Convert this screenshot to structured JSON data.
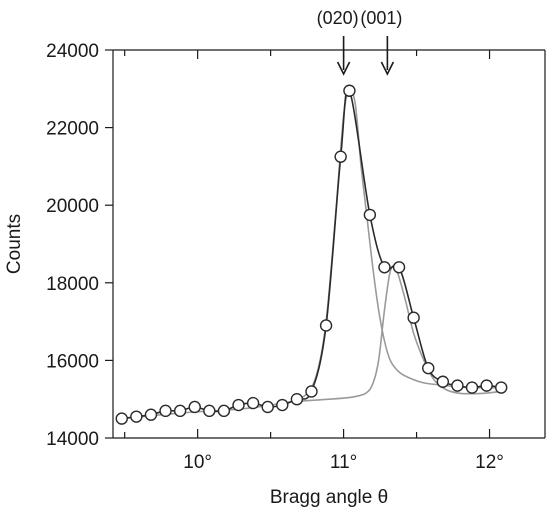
{
  "chart_data": {
    "type": "scatter",
    "title": "",
    "xlabel": "Bragg angle θ",
    "ylabel": "Counts",
    "xlim": [
      9.42,
      12.38
    ],
    "ylim": [
      14000,
      24000
    ],
    "x_ticks": [
      10,
      11,
      12
    ],
    "x_tick_labels": [
      "10°",
      "11°",
      "12°"
    ],
    "y_ticks": [
      14000,
      16000,
      18000,
      20000,
      22000,
      24000
    ],
    "y_tick_labels": [
      "14000",
      "16000",
      "18000",
      "20000",
      "22000",
      "24000"
    ],
    "grid": false,
    "legend": "none",
    "colors": {
      "data_line": "#2a2a2a",
      "fit_line": "#9a9a9a",
      "axes": "#1a1a1a",
      "markers_fill": "#ffffff"
    },
    "series": [
      {
        "kind": "measured",
        "marker": "open-circle",
        "x": [
          9.48,
          9.58,
          9.68,
          9.78,
          9.88,
          9.98,
          10.08,
          10.18,
          10.28,
          10.38,
          10.48,
          10.58,
          10.68,
          10.78,
          10.88,
          10.98,
          11.04,
          11.18,
          11.28,
          11.38,
          11.48,
          11.58,
          11.68,
          11.78,
          11.88,
          11.98,
          12.08
        ],
        "y": [
          14500,
          14550,
          14600,
          14700,
          14700,
          14800,
          14700,
          14700,
          14850,
          14900,
          14800,
          14850,
          15000,
          15200,
          16900,
          21250,
          22950,
          19750,
          18400,
          18400,
          17100,
          15800,
          15450,
          15350,
          15300,
          15350,
          15300
        ]
      },
      {
        "kind": "fit-020",
        "x": [
          9.48,
          9.9,
          10.3,
          10.5,
          10.65,
          10.75,
          10.82,
          10.88,
          10.94,
          11.0,
          11.04,
          11.08,
          11.12,
          11.16,
          11.2,
          11.24,
          11.28,
          11.32,
          11.38,
          11.45,
          11.55,
          11.7,
          11.85,
          12.08
        ],
        "y": [
          14500,
          14650,
          14750,
          14850,
          14950,
          15150,
          15700,
          17000,
          19500,
          22300,
          22950,
          22600,
          21000,
          19700,
          18400,
          17300,
          16500,
          16000,
          15700,
          15550,
          15420,
          15350,
          15300,
          15300
        ]
      },
      {
        "kind": "fit-001",
        "x": [
          10.7,
          10.9,
          11.05,
          11.15,
          11.2,
          11.24,
          11.28,
          11.32,
          11.36,
          11.42,
          11.48,
          11.55,
          11.62,
          11.7,
          11.8,
          11.95,
          12.08
        ],
        "y": [
          14950,
          15000,
          15050,
          15150,
          15400,
          16000,
          17300,
          18300,
          18350,
          17600,
          16700,
          16000,
          15500,
          15250,
          15150,
          15150,
          15200
        ]
      }
    ],
    "annotations": [
      {
        "label": "(020)",
        "x": 11.0
      },
      {
        "label": "(001)",
        "x": 11.3
      }
    ]
  }
}
